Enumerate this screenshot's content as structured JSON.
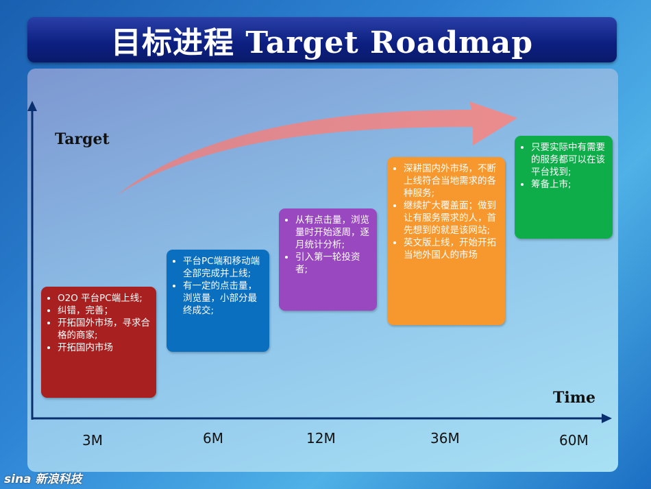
{
  "title": "目标进程  Target Roadmap",
  "axes": {
    "y_label": "Target",
    "x_label": "Time"
  },
  "milestones": [
    {
      "time": "3M",
      "color": "#a8201f",
      "items": [
        "O2O 平台PC端上线;",
        "纠错，完善；",
        "开拓国外市场，寻求合格的商家;",
        "开拓国内市场"
      ]
    },
    {
      "time": "6M",
      "color": "#0b6fc0",
      "items": [
        "平台PC端和移动端全部完成并上线;",
        "有一定的点击量，浏览量，小部分最终成交;"
      ]
    },
    {
      "time": "12M",
      "color": "#9a48c0",
      "items": [
        "从有点击量，浏览量时开始逐周，逐月统计分析;",
        "引入第一轮投资者;"
      ]
    },
    {
      "time": "36M",
      "color": "#f7982f",
      "items": [
        "深耕国内外市场，不断上线符合当地需求的各种服务;",
        "继续扩大覆盖面；做到让有服务需求的人，首先想到的就是该网站;",
        "英文版上线，开始开拓当地外国人的市场"
      ]
    },
    {
      "time": "60M",
      "color": "#0fac4a",
      "items": [
        "只要实际中有需要的服务都可以在该平台找到;",
        "筹备上市;"
      ]
    }
  ],
  "logo": "sina 新浪科技"
}
